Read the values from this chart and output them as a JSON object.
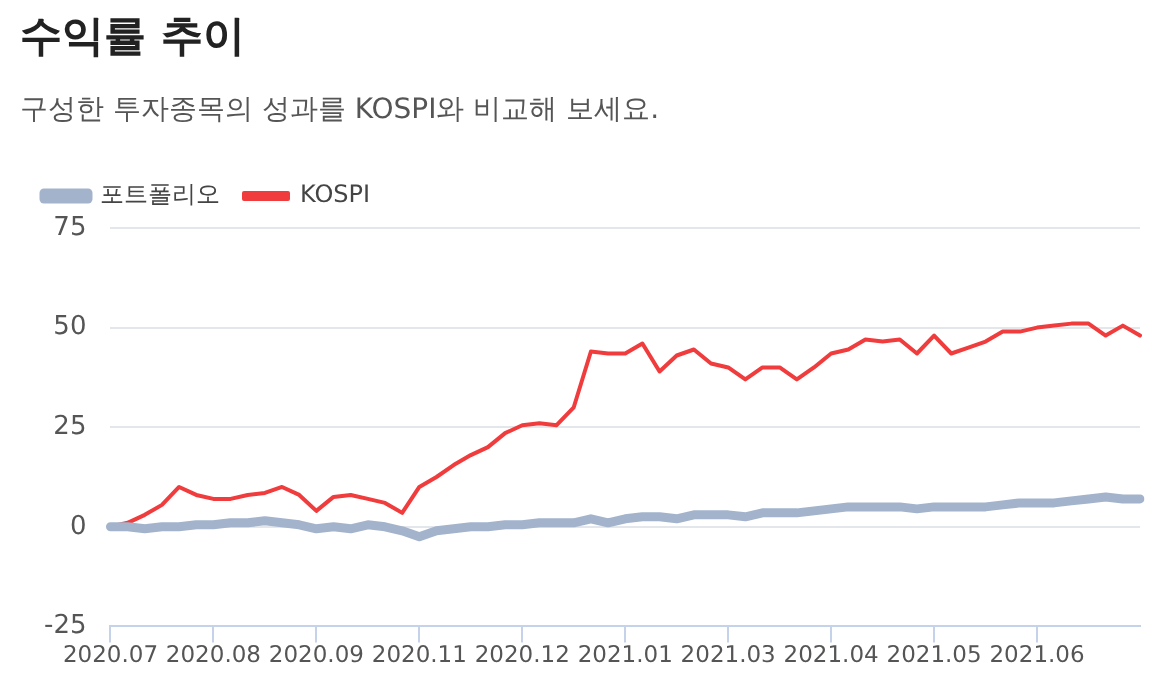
{
  "chart_data": {
    "type": "line",
    "title": "수익률 추이",
    "subtitle": "구성한 투자종목의 성과를 KOSPI와 비교해 보세요.",
    "categories": [
      "2020.07",
      null,
      null,
      null,
      null,
      null,
      "2020.08",
      null,
      null,
      null,
      null,
      null,
      "2020.09",
      null,
      null,
      null,
      null,
      null,
      "2020.11",
      null,
      null,
      null,
      null,
      null,
      "2020.12",
      null,
      null,
      null,
      null,
      null,
      "2021.01",
      null,
      null,
      null,
      null,
      null,
      "2021.03",
      null,
      null,
      null,
      null,
      null,
      "2021.04",
      null,
      null,
      null,
      null,
      null,
      "2021.05",
      null,
      null,
      null,
      null,
      null,
      "2021.06",
      null,
      null,
      null,
      null,
      null,
      null
    ],
    "series": [
      {
        "name": "포트폴리오",
        "color": "#a3b3cc",
        "values": [
          0,
          0,
          -0.5,
          0,
          0,
          0.5,
          0.5,
          1,
          1,
          1.5,
          1,
          0.5,
          -0.5,
          0,
          -0.5,
          0.5,
          0,
          -1,
          -2.5,
          -1,
          -0.5,
          0,
          0,
          0.5,
          0.5,
          1,
          1,
          1,
          2,
          1,
          2,
          2.5,
          2.5,
          2,
          3,
          3,
          3,
          2.5,
          3.5,
          3.5,
          3.5,
          4,
          4.5,
          5,
          5,
          5,
          5,
          4.5,
          5,
          5,
          5,
          5,
          5.5,
          6,
          6,
          6,
          6.5,
          7,
          7.5,
          7,
          7
        ]
      },
      {
        "name": "KOSPI",
        "color": "#f03c3c",
        "values": [
          0,
          1,
          3,
          5.5,
          10,
          8,
          7,
          7,
          8,
          8.5,
          10,
          8,
          4,
          7.5,
          8,
          7,
          6,
          3.5,
          10,
          12.5,
          15.5,
          18,
          20,
          23.5,
          25.5,
          26,
          25.5,
          30,
          44,
          43.5,
          43.5,
          46,
          39,
          43,
          44.5,
          41,
          40,
          37,
          40,
          40,
          37,
          40,
          43.5,
          44.5,
          47,
          46.5,
          47,
          43.5,
          48,
          43.5,
          45,
          46.5,
          49,
          49,
          50,
          50.5,
          51,
          51,
          48,
          50.5,
          48
        ]
      }
    ],
    "ylim": [
      -25,
      75
    ],
    "yticks": [
      -25,
      0,
      25,
      50,
      75
    ],
    "grid": "y",
    "legend": "top left",
    "marker": "none",
    "line_style": "solid"
  }
}
